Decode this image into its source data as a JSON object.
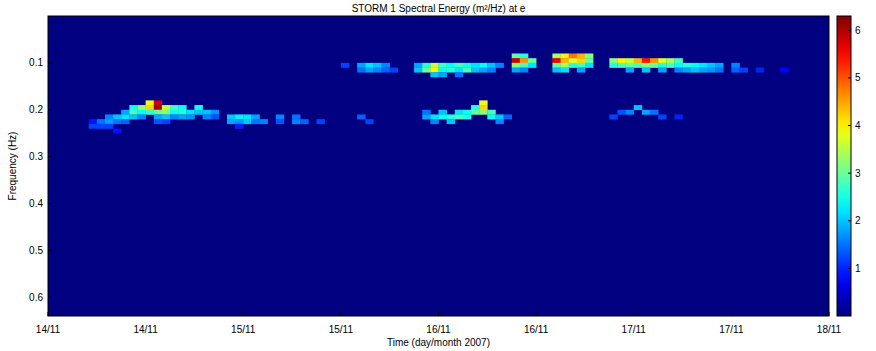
{
  "chart_data": {
    "type": "heatmap",
    "title": "STORM 1 Spectral Energy (m²/Hz) at e",
    "x_label": "Time (day/month 2007)",
    "y_label": "Frequency (Hz)",
    "xlim": [
      0,
      96
    ],
    "xticks": [
      {
        "value": 0,
        "label": "14/11"
      },
      {
        "value": 12,
        "label": "14/11"
      },
      {
        "value": 24,
        "label": "15/11"
      },
      {
        "value": 36,
        "label": "15/11"
      },
      {
        "value": 48,
        "label": "16/11"
      },
      {
        "value": 60,
        "label": "16/11"
      },
      {
        "value": 72,
        "label": "17/11"
      },
      {
        "value": 84,
        "label": "17/11"
      },
      {
        "value": 96,
        "label": "18/11"
      }
    ],
    "ylim": [
      0.64,
      0
    ],
    "yticks": [
      0.1,
      0.2,
      0.3,
      0.4,
      0.5,
      0.6
    ],
    "colorbar": {
      "range": [
        0,
        6.3
      ],
      "ticks": [
        1,
        2,
        3,
        4,
        5,
        6
      ]
    },
    "cells": [
      [
        5.5,
        0.235,
        1.2
      ],
      [
        5.5,
        0.225,
        0.9
      ],
      [
        6.5,
        0.225,
        1.5
      ],
      [
        6.5,
        0.235,
        1.2
      ],
      [
        7.5,
        0.215,
        1.6
      ],
      [
        7.5,
        0.225,
        1.8
      ],
      [
        7.5,
        0.235,
        1.2
      ],
      [
        8.5,
        0.215,
        2.0
      ],
      [
        8.5,
        0.225,
        1.5
      ],
      [
        8.5,
        0.245,
        0.9
      ],
      [
        9.5,
        0.205,
        1.8
      ],
      [
        9.5,
        0.215,
        2.2
      ],
      [
        9.5,
        0.225,
        1.4
      ],
      [
        10.5,
        0.195,
        2.5
      ],
      [
        10.5,
        0.205,
        2.8
      ],
      [
        10.5,
        0.215,
        2.0
      ],
      [
        11.5,
        0.195,
        3.2
      ],
      [
        11.5,
        0.205,
        2.4
      ],
      [
        11.5,
        0.215,
        1.6
      ],
      [
        12.5,
        0.185,
        3.8
      ],
      [
        12.5,
        0.195,
        4.2
      ],
      [
        12.5,
        0.205,
        2.6
      ],
      [
        13.5,
        0.185,
        5.8
      ],
      [
        13.5,
        0.195,
        6.1
      ],
      [
        13.5,
        0.205,
        3.0
      ],
      [
        13.5,
        0.215,
        1.8
      ],
      [
        13.5,
        0.225,
        1.3
      ],
      [
        14.5,
        0.195,
        3.6
      ],
      [
        14.5,
        0.205,
        3.2
      ],
      [
        14.5,
        0.215,
        2.0
      ],
      [
        14.5,
        0.225,
        1.2
      ],
      [
        15.5,
        0.195,
        2.8
      ],
      [
        15.5,
        0.205,
        2.4
      ],
      [
        15.5,
        0.215,
        1.6
      ],
      [
        16.5,
        0.195,
        2.4
      ],
      [
        16.5,
        0.205,
        2.6
      ],
      [
        16.5,
        0.215,
        1.8
      ],
      [
        17.5,
        0.205,
        2.2
      ],
      [
        17.5,
        0.215,
        1.7
      ],
      [
        18.5,
        0.195,
        2.5
      ],
      [
        18.5,
        0.205,
        2.0
      ],
      [
        19.5,
        0.205,
        2.0
      ],
      [
        19.5,
        0.215,
        1.6
      ],
      [
        20.5,
        0.205,
        1.7
      ],
      [
        20.5,
        0.215,
        1.3
      ],
      [
        22.5,
        0.215,
        2.0
      ],
      [
        22.5,
        0.225,
        1.8
      ],
      [
        23.5,
        0.215,
        2.3
      ],
      [
        23.5,
        0.225,
        1.7
      ],
      [
        23.5,
        0.235,
        1.0
      ],
      [
        24.5,
        0.215,
        2.2
      ],
      [
        24.5,
        0.225,
        2.0
      ],
      [
        25.5,
        0.215,
        1.8
      ],
      [
        25.5,
        0.225,
        1.5
      ],
      [
        26.5,
        0.225,
        1.6
      ],
      [
        28.5,
        0.215,
        1.6
      ],
      [
        28.5,
        0.225,
        1.3
      ],
      [
        30.5,
        0.215,
        1.5
      ],
      [
        30.5,
        0.225,
        1.6
      ],
      [
        31.5,
        0.225,
        1.4
      ],
      [
        33.5,
        0.225,
        1.2
      ],
      [
        38.5,
        0.215,
        1.4
      ],
      [
        39.5,
        0.225,
        1.2
      ],
      [
        46.5,
        0.205,
        1.5
      ],
      [
        46.5,
        0.215,
        1.8
      ],
      [
        47.5,
        0.215,
        2.2
      ],
      [
        47.5,
        0.225,
        1.6
      ],
      [
        48.5,
        0.205,
        2.0
      ],
      [
        48.5,
        0.215,
        2.4
      ],
      [
        49.5,
        0.215,
        2.6
      ],
      [
        49.5,
        0.225,
        2.0
      ],
      [
        50.5,
        0.205,
        2.2
      ],
      [
        50.5,
        0.215,
        2.8
      ],
      [
        51.5,
        0.205,
        2.4
      ],
      [
        51.5,
        0.215,
        2.5
      ],
      [
        52.5,
        0.195,
        2.6
      ],
      [
        52.5,
        0.205,
        3.0
      ],
      [
        53.5,
        0.185,
        3.8
      ],
      [
        53.5,
        0.195,
        4.2
      ],
      [
        53.5,
        0.205,
        3.2
      ],
      [
        54.5,
        0.205,
        2.8
      ],
      [
        54.5,
        0.215,
        2.4
      ],
      [
        55.5,
        0.215,
        2.0
      ],
      [
        55.5,
        0.225,
        1.6
      ],
      [
        56.5,
        0.215,
        1.4
      ],
      [
        69.5,
        0.215,
        1.2
      ],
      [
        70.5,
        0.205,
        1.3
      ],
      [
        71.5,
        0.205,
        1.6
      ],
      [
        72.5,
        0.195,
        2.0
      ],
      [
        73.5,
        0.205,
        1.8
      ],
      [
        74.5,
        0.205,
        1.5
      ],
      [
        75.5,
        0.215,
        1.2
      ],
      [
        77.5,
        0.215,
        1.0
      ],
      [
        36.5,
        0.105,
        1.2
      ],
      [
        38.5,
        0.105,
        1.8
      ],
      [
        38.5,
        0.115,
        1.5
      ],
      [
        39.5,
        0.105,
        2.2
      ],
      [
        39.5,
        0.115,
        1.8
      ],
      [
        40.5,
        0.105,
        2.0
      ],
      [
        40.5,
        0.115,
        1.6
      ],
      [
        41.5,
        0.105,
        1.6
      ],
      [
        41.5,
        0.115,
        1.4
      ],
      [
        42.5,
        0.115,
        1.2
      ],
      [
        45.5,
        0.105,
        1.8
      ],
      [
        45.5,
        0.115,
        2.0
      ],
      [
        46.5,
        0.105,
        2.6
      ],
      [
        46.5,
        0.115,
        3.0
      ],
      [
        47.5,
        0.105,
        3.6
      ],
      [
        47.5,
        0.115,
        4.0
      ],
      [
        47.5,
        0.125,
        2.0
      ],
      [
        48.5,
        0.105,
        2.8
      ],
      [
        48.5,
        0.115,
        2.4
      ],
      [
        48.5,
        0.125,
        1.8
      ],
      [
        49.5,
        0.105,
        2.4
      ],
      [
        49.5,
        0.115,
        2.6
      ],
      [
        50.5,
        0.105,
        2.8
      ],
      [
        50.5,
        0.115,
        2.2
      ],
      [
        50.5,
        0.125,
        1.5
      ],
      [
        51.5,
        0.105,
        2.5
      ],
      [
        51.5,
        0.115,
        2.8
      ],
      [
        52.5,
        0.105,
        2.2
      ],
      [
        52.5,
        0.115,
        2.0
      ],
      [
        53.5,
        0.105,
        2.4
      ],
      [
        53.5,
        0.115,
        1.8
      ],
      [
        54.5,
        0.105,
        2.0
      ],
      [
        54.5,
        0.115,
        1.6
      ],
      [
        55.5,
        0.105,
        1.6
      ],
      [
        57.5,
        0.085,
        3.0
      ],
      [
        57.5,
        0.095,
        5.8
      ],
      [
        57.5,
        0.105,
        3.2
      ],
      [
        57.5,
        0.115,
        1.8
      ],
      [
        58.5,
        0.085,
        2.6
      ],
      [
        58.5,
        0.095,
        4.6
      ],
      [
        58.5,
        0.105,
        2.8
      ],
      [
        58.5,
        0.115,
        1.6
      ],
      [
        59.5,
        0.095,
        3.0
      ],
      [
        59.5,
        0.105,
        2.2
      ],
      [
        62.5,
        0.085,
        3.4
      ],
      [
        62.5,
        0.095,
        5.6
      ],
      [
        62.5,
        0.105,
        3.0
      ],
      [
        62.5,
        0.115,
        2.0
      ],
      [
        63.5,
        0.085,
        4.0
      ],
      [
        63.5,
        0.095,
        4.4
      ],
      [
        63.5,
        0.105,
        3.4
      ],
      [
        63.5,
        0.115,
        2.2
      ],
      [
        64.5,
        0.085,
        4.8
      ],
      [
        64.5,
        0.095,
        3.8
      ],
      [
        64.5,
        0.105,
        2.6
      ],
      [
        65.5,
        0.085,
        4.4
      ],
      [
        65.5,
        0.095,
        4.2
      ],
      [
        65.5,
        0.105,
        2.8
      ],
      [
        65.5,
        0.115,
        1.8
      ],
      [
        66.5,
        0.085,
        3.2
      ],
      [
        66.5,
        0.095,
        3.0
      ],
      [
        66.5,
        0.105,
        2.2
      ],
      [
        69.5,
        0.095,
        3.2
      ],
      [
        69.5,
        0.105,
        2.6
      ],
      [
        70.5,
        0.095,
        4.0
      ],
      [
        70.5,
        0.105,
        2.8
      ],
      [
        71.5,
        0.095,
        3.6
      ],
      [
        71.5,
        0.105,
        3.0
      ],
      [
        71.5,
        0.115,
        1.8
      ],
      [
        72.5,
        0.095,
        4.4
      ],
      [
        72.5,
        0.105,
        2.8
      ],
      [
        73.5,
        0.095,
        5.4
      ],
      [
        73.5,
        0.105,
        3.2
      ],
      [
        73.5,
        0.115,
        2.0
      ],
      [
        74.5,
        0.095,
        4.6
      ],
      [
        74.5,
        0.105,
        3.0
      ],
      [
        75.5,
        0.095,
        3.8
      ],
      [
        75.5,
        0.105,
        2.6
      ],
      [
        75.5,
        0.115,
        1.8
      ],
      [
        76.5,
        0.095,
        3.4
      ],
      [
        76.5,
        0.105,
        2.8
      ],
      [
        77.5,
        0.095,
        2.8
      ],
      [
        77.5,
        0.105,
        2.4
      ],
      [
        77.5,
        0.115,
        1.6
      ],
      [
        78.5,
        0.105,
        2.6
      ],
      [
        78.5,
        0.115,
        1.8
      ],
      [
        79.5,
        0.105,
        2.4
      ],
      [
        79.5,
        0.115,
        2.0
      ],
      [
        80.5,
        0.105,
        2.2
      ],
      [
        80.5,
        0.115,
        1.8
      ],
      [
        81.5,
        0.105,
        2.0
      ],
      [
        81.5,
        0.115,
        1.7
      ],
      [
        82.5,
        0.105,
        1.8
      ],
      [
        82.5,
        0.115,
        1.5
      ],
      [
        84.5,
        0.105,
        1.6
      ],
      [
        84.5,
        0.115,
        1.4
      ],
      [
        85.5,
        0.115,
        1.2
      ],
      [
        87.5,
        0.115,
        1.0
      ],
      [
        90.5,
        0.115,
        0.8
      ]
    ]
  }
}
